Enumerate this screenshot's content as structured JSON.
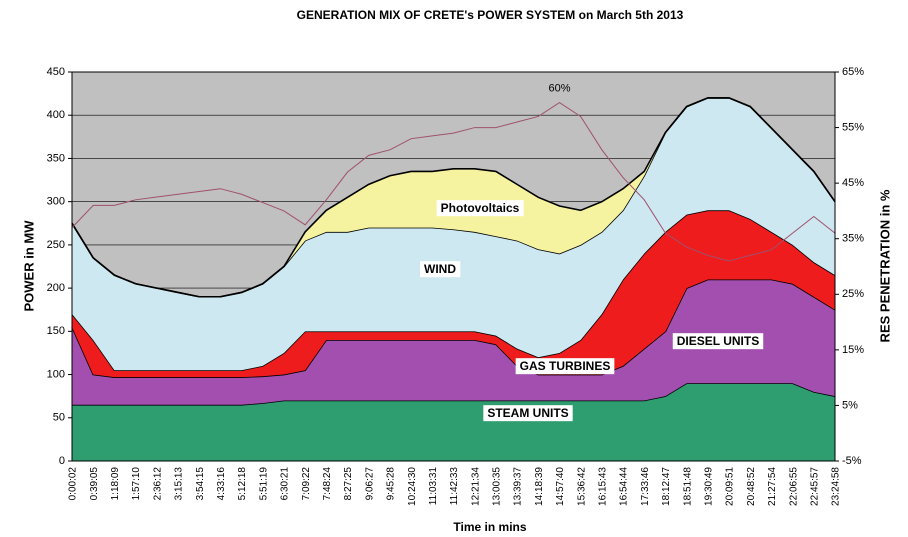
{
  "chart_data": {
    "type": "area",
    "title": "GENERATION MIX OF CRETE's POWER SYSTEM on March 5th 2013",
    "x_label": "Time in mins",
    "y_label": "POWER in MW",
    "y2_label": "RES PENETRATION in %",
    "categories": [
      "0:00:02",
      "0:39:05",
      "1:18:09",
      "1:57:10",
      "2:36:12",
      "3:15:13",
      "3:54:15",
      "4:33:16",
      "5:12:18",
      "5:51:19",
      "6:30:21",
      "7:09:22",
      "7:48:24",
      "8:27:25",
      "9:06:27",
      "9:45:28",
      "10:24:30",
      "11:03:31",
      "11:42:33",
      "12:21:34",
      "13:00:35",
      "13:39:37",
      "14:18:39",
      "14:57:40",
      "15:36:42",
      "16:15:43",
      "16:54:44",
      "17:33:46",
      "18:12:47",
      "18:51:48",
      "19:30:49",
      "20:09:51",
      "20:48:52",
      "21:27:54",
      "22:06:55",
      "22:45:57",
      "23:24:58"
    ],
    "series": [
      {
        "name": "STEAM UNITS",
        "color": "#2e9e70",
        "values": [
          65,
          65,
          65,
          65,
          65,
          65,
          65,
          65,
          65,
          67,
          70,
          70,
          70,
          70,
          70,
          70,
          70,
          70,
          70,
          70,
          70,
          70,
          70,
          70,
          70,
          70,
          70,
          70,
          75,
          90,
          90,
          90,
          90,
          90,
          90,
          80,
          75
        ]
      },
      {
        "name": "DIESEL UNITS",
        "color": "#a24fb0",
        "values": [
          90,
          35,
          32,
          32,
          32,
          32,
          32,
          32,
          32,
          31,
          30,
          35,
          70,
          70,
          70,
          70,
          70,
          70,
          70,
          70,
          65,
          40,
          30,
          30,
          30,
          30,
          40,
          60,
          75,
          110,
          120,
          120,
          120,
          120,
          115,
          110,
          100
        ]
      },
      {
        "name": "GAS TURBINES",
        "color": "#ee1c1c",
        "values": [
          15,
          40,
          8,
          8,
          8,
          8,
          8,
          8,
          8,
          12,
          25,
          45,
          10,
          10,
          10,
          10,
          10,
          10,
          10,
          10,
          10,
          20,
          20,
          25,
          40,
          70,
          100,
          110,
          115,
          85,
          80,
          80,
          70,
          55,
          45,
          40,
          40
        ]
      },
      {
        "name": "WIND",
        "color": "#cde8f0",
        "values": [
          105,
          95,
          110,
          100,
          95,
          90,
          85,
          85,
          90,
          95,
          100,
          105,
          115,
          115,
          120,
          120,
          120,
          120,
          118,
          115,
          115,
          125,
          125,
          115,
          110,
          95,
          80,
          90,
          115,
          125,
          130,
          130,
          130,
          120,
          110,
          105,
          85
        ]
      },
      {
        "name": "Photovoltaics",
        "color": "#f6f3a0",
        "values": [
          0,
          0,
          0,
          0,
          0,
          0,
          0,
          0,
          0,
          0,
          0,
          10,
          25,
          40,
          50,
          60,
          65,
          65,
          70,
          73,
          75,
          65,
          60,
          55,
          40,
          35,
          25,
          5,
          0,
          0,
          0,
          0,
          0,
          0,
          0,
          0,
          0
        ]
      },
      {
        "color": "#a0506e",
        "axis": "y2",
        "values": [
          37,
          41,
          41,
          42,
          42.5,
          43,
          43.5,
          44,
          43,
          41.5,
          40,
          37.5,
          42,
          47,
          50,
          51,
          53,
          53.5,
          54,
          55,
          55,
          56,
          57,
          59.5,
          57,
          51,
          46,
          42,
          36,
          33.5,
          32,
          31,
          32,
          33,
          36,
          39,
          36
        ]
      }
    ],
    "annotations": [
      {
        "text": "60%"
      }
    ],
    "ylim": [
      0,
      450
    ],
    "yticks": [
      0,
      50,
      100,
      150,
      200,
      250,
      300,
      350,
      400,
      450
    ],
    "y2lim": [
      -5,
      65
    ],
    "y2ticks": [
      {
        "value": 65,
        "label": "65%"
      },
      {
        "value": 55,
        "label": "55%"
      },
      {
        "value": 45,
        "label": "45%"
      },
      {
        "value": 35,
        "label": "35%"
      },
      {
        "value": 25,
        "label": "25%"
      },
      {
        "value": 15,
        "label": "15%"
      },
      {
        "value": 5,
        "label": "5%"
      },
      {
        "value": -5,
        "label": "-5%"
      }
    ],
    "grid": true,
    "background": "#c0c0c0"
  }
}
